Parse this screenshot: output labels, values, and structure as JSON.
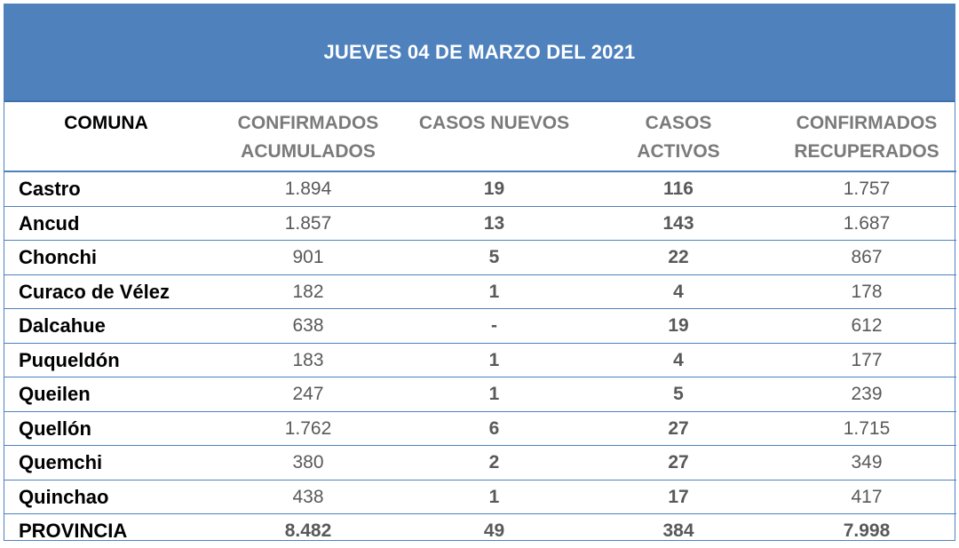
{
  "title": "JUEVES 04 DE MARZO DEL 2021",
  "headers": [
    {
      "line1": "COMUNA",
      "line2": ""
    },
    {
      "line1": "CONFIRMADOS",
      "line2": "ACUMULADOS"
    },
    {
      "line1": "CASOS NUEVOS",
      "line2": ""
    },
    {
      "line1": "CASOS",
      "line2": "ACTIVOS"
    },
    {
      "line1": "CONFIRMADOS",
      "line2": "RECUPERADOS"
    }
  ],
  "rows": [
    {
      "comuna": "Castro",
      "acumulados": "1.894",
      "nuevos": "19",
      "activos": "116",
      "recuperados": "1.757"
    },
    {
      "comuna": "Ancud",
      "acumulados": "1.857",
      "nuevos": "13",
      "activos": "143",
      "recuperados": "1.687"
    },
    {
      "comuna": "Chonchi",
      "acumulados": "901",
      "nuevos": "5",
      "activos": "22",
      "recuperados": "867"
    },
    {
      "comuna": "Curaco de Vélez",
      "acumulados": "182",
      "nuevos": "1",
      "activos": "4",
      "recuperados": "178"
    },
    {
      "comuna": "Dalcahue",
      "acumulados": "638",
      "nuevos": "-",
      "activos": "19",
      "recuperados": "612"
    },
    {
      "comuna": "Puqueldón",
      "acumulados": "183",
      "nuevos": "1",
      "activos": "4",
      "recuperados": "177"
    },
    {
      "comuna": "Queilen",
      "acumulados": "247",
      "nuevos": "1",
      "activos": "5",
      "recuperados": "239"
    },
    {
      "comuna": "Quellón",
      "acumulados": "1.762",
      "nuevos": "6",
      "activos": "27",
      "recuperados": "1.715"
    },
    {
      "comuna": "Quemchi",
      "acumulados": "380",
      "nuevos": "2",
      "activos": "27",
      "recuperados": "349"
    },
    {
      "comuna": "Quinchao",
      "acumulados": "438",
      "nuevos": "1",
      "activos": "17",
      "recuperados": "417"
    }
  ],
  "total": {
    "comuna": "PROVINCIA",
    "acumulados": "8.482",
    "nuevos": "49",
    "activos": "384",
    "recuperados": "7.998"
  },
  "colors": {
    "banner": "#4f81bd",
    "border": "#4f81bd",
    "header_text": "#7a7a7a",
    "value_text": "#595959"
  }
}
